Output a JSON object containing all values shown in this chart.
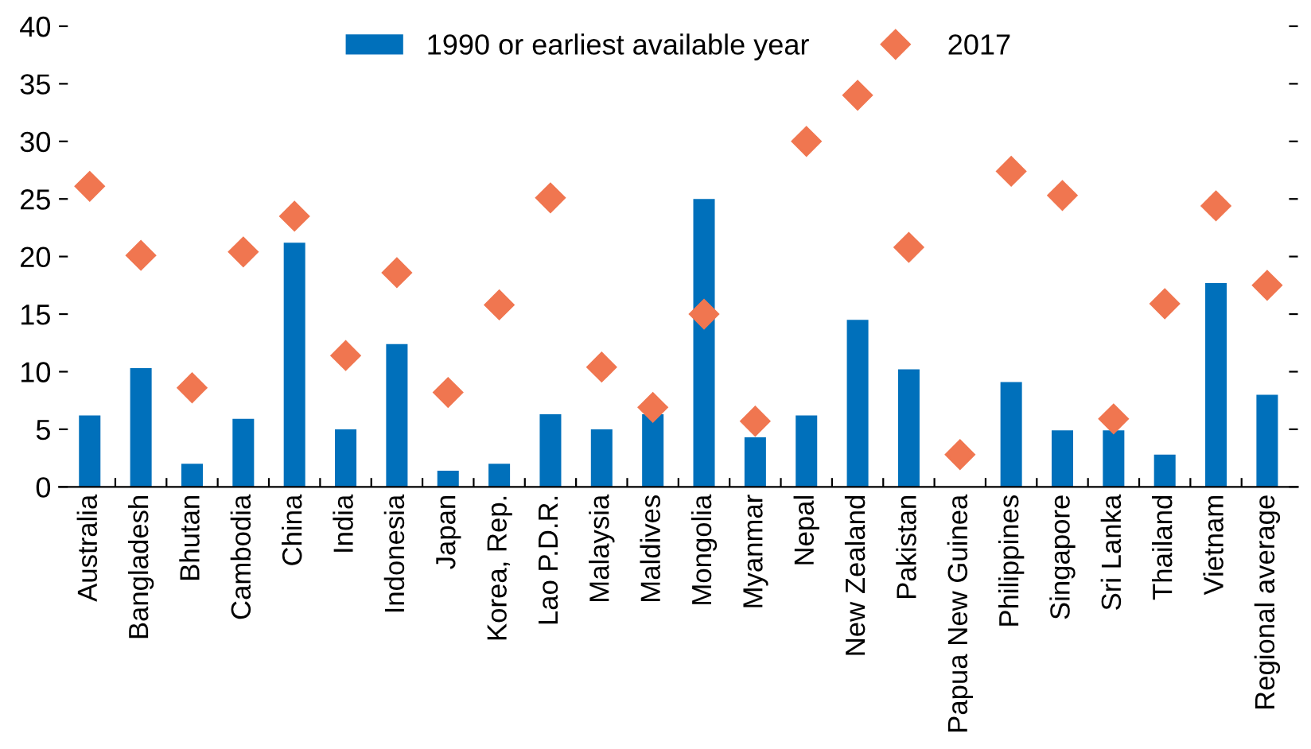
{
  "chart_data": {
    "type": "bar",
    "categories": [
      "Australia",
      "Bangladesh",
      "Bhutan",
      "Cambodia",
      "China",
      "India",
      "Indonesia",
      "Japan",
      "Korea, Rep.",
      "Lao P.D.R.",
      "Malaysia",
      "Maldives",
      "Mongolia",
      "Myanmar",
      "Nepal",
      "New Zealand",
      "Pakistan",
      "Papua New Guinea",
      "Philippines",
      "Singapore",
      "Sri Lanka",
      "Thailand",
      "Vietnam",
      "Regional average"
    ],
    "series": [
      {
        "name": "1990 or earliest available year",
        "color": "#0070bb",
        "values": [
          6.2,
          10.3,
          2.0,
          5.9,
          21.2,
          5.0,
          12.4,
          1.4,
          2.0,
          6.3,
          5.0,
          6.3,
          25.0,
          4.3,
          6.2,
          14.5,
          10.2,
          null,
          9.1,
          4.9,
          4.9,
          2.8,
          17.7,
          8.0
        ]
      },
      {
        "name": "2017",
        "type": "scatter",
        "marker": "diamond",
        "color": "#f07650",
        "values": [
          26.1,
          20.1,
          8.6,
          20.4,
          23.5,
          11.4,
          18.6,
          8.2,
          15.8,
          25.1,
          10.4,
          6.9,
          15.0,
          5.7,
          30.0,
          34.0,
          20.8,
          2.8,
          27.4,
          25.3,
          5.9,
          15.9,
          24.4,
          17.5
        ]
      }
    ],
    "ylim": [
      0,
      40
    ],
    "yticks": [
      0,
      5,
      10,
      15,
      20,
      25,
      30,
      35,
      40
    ],
    "grid": false,
    "legend": "top"
  }
}
